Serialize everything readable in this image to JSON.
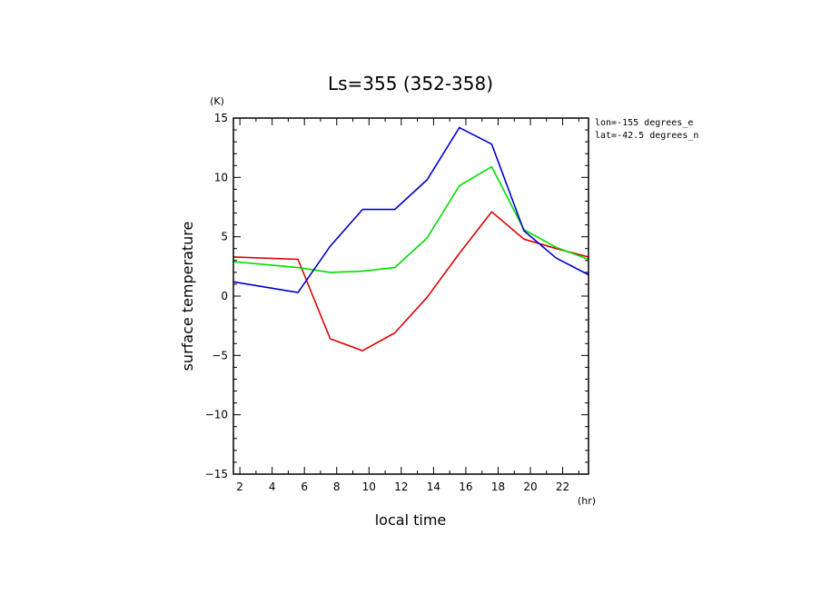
{
  "chart_data": {
    "type": "line",
    "title": "Ls=355 (352-358)",
    "xlabel": "local time",
    "ylabel": "surface temperature",
    "x_unit": "(hr)",
    "y_unit": "(K)",
    "xlim": [
      1.6,
      23.6
    ],
    "ylim": [
      -15,
      15
    ],
    "x_ticks": [
      2,
      4,
      6,
      8,
      10,
      12,
      14,
      16,
      18,
      20,
      22
    ],
    "y_ticks": [
      -15,
      -10,
      -5,
      0,
      5,
      10,
      15
    ],
    "annotations": [
      "lon=-155 degrees_e",
      "lat=-42.5 degrees_n"
    ],
    "grid": false,
    "x": [
      1.6,
      5.6,
      7.6,
      9.6,
      11.6,
      13.6,
      15.6,
      17.6,
      19.6,
      21.6,
      23.6
    ],
    "series": [
      {
        "color": "#dd0000",
        "values": [
          3.3,
          3.1,
          -3.6,
          -4.6,
          -3.1,
          -0.1,
          3.6,
          7.1,
          4.8,
          4.0,
          3.3
        ]
      },
      {
        "color": "#00dd00",
        "values": [
          2.9,
          2.4,
          2.0,
          2.1,
          2.4,
          4.9,
          9.3,
          10.9,
          5.6,
          4.1,
          3.1
        ]
      },
      {
        "color": "#0000cc",
        "values": [
          1.2,
          0.3,
          4.2,
          7.3,
          7.3,
          9.8,
          14.2,
          12.8,
          5.5,
          3.2,
          1.8
        ]
      }
    ]
  }
}
